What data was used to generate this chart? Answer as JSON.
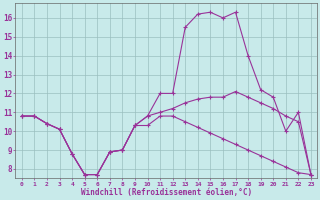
{
  "xlabel": "Windchill (Refroidissement éolien,°C)",
  "background_color": "#c8eaea",
  "grid_color": "#9bbfbf",
  "line_color": "#993399",
  "x_hours": [
    0,
    1,
    2,
    3,
    4,
    5,
    6,
    7,
    8,
    9,
    10,
    11,
    12,
    13,
    14,
    15,
    16,
    17,
    18,
    19,
    20,
    21,
    22,
    23
  ],
  "line_windchill": [
    10.8,
    10.8,
    10.4,
    10.1,
    8.8,
    7.7,
    7.7,
    8.9,
    9.0,
    10.3,
    10.3,
    10.8,
    10.8,
    10.5,
    10.2,
    9.9,
    9.6,
    9.3,
    9.0,
    8.7,
    8.4,
    8.1,
    7.8,
    7.7
  ],
  "line_temp": [
    10.8,
    10.8,
    10.4,
    10.1,
    8.8,
    7.7,
    7.7,
    8.9,
    9.0,
    10.3,
    10.8,
    12.0,
    12.0,
    15.5,
    16.2,
    16.3,
    16.0,
    16.3,
    14.0,
    12.2,
    11.8,
    10.0,
    11.0,
    7.7
  ],
  "line_avg": [
    10.8,
    10.8,
    10.4,
    10.1,
    8.8,
    7.7,
    7.7,
    8.9,
    9.0,
    10.3,
    10.8,
    11.0,
    11.2,
    11.5,
    11.7,
    11.8,
    11.8,
    12.1,
    11.8,
    11.5,
    11.2,
    10.8,
    10.5,
    7.7
  ],
  "ylim": [
    7.5,
    16.8
  ],
  "yticks": [
    8,
    9,
    10,
    11,
    12,
    13,
    14,
    15,
    16
  ],
  "xlim": [
    -0.5,
    23.5
  ],
  "xticks": [
    0,
    1,
    2,
    3,
    4,
    5,
    6,
    7,
    8,
    9,
    10,
    11,
    12,
    13,
    14,
    15,
    16,
    17,
    18,
    19,
    20,
    21,
    22,
    23
  ]
}
